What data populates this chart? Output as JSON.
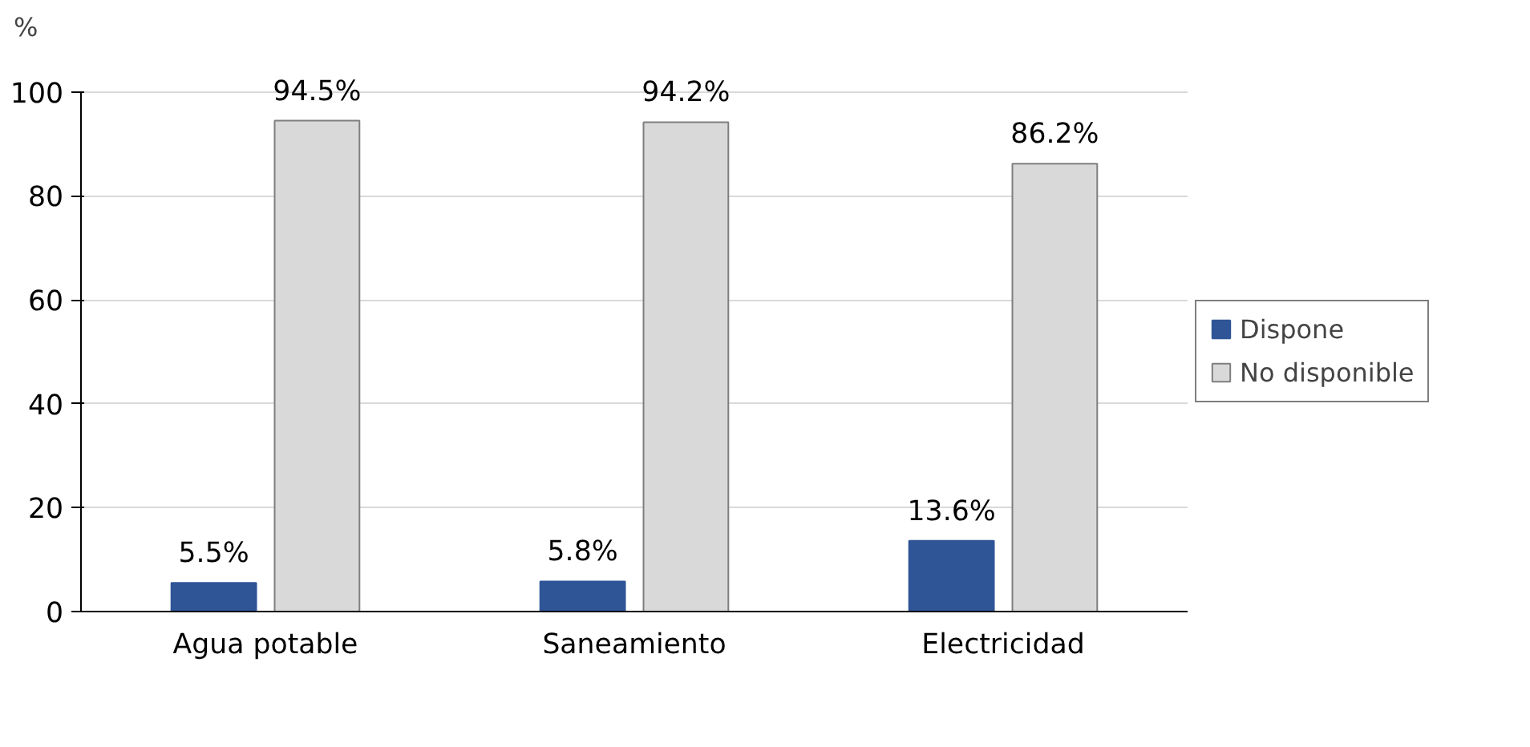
{
  "chart_data": {
    "type": "bar",
    "ylabel": "%",
    "categories": [
      "Agua potable",
      "Saneamiento",
      "Electricidad"
    ],
    "series": [
      {
        "name": "Dispone",
        "color": "#2f5597",
        "values": [
          5.5,
          5.8,
          13.6
        ],
        "value_labels": [
          "5.5%",
          "5.8%",
          "13.6%"
        ]
      },
      {
        "name": "No disponible",
        "color": "#d9d9d9",
        "values": [
          94.5,
          94.2,
          86.2
        ],
        "value_labels": [
          "94.5%",
          "94.2%",
          "86.2%"
        ]
      }
    ],
    "ylim": [
      0,
      100
    ],
    "yticks": [
      0,
      20,
      40,
      60,
      80,
      100
    ],
    "grid": "y",
    "legend": "right"
  }
}
